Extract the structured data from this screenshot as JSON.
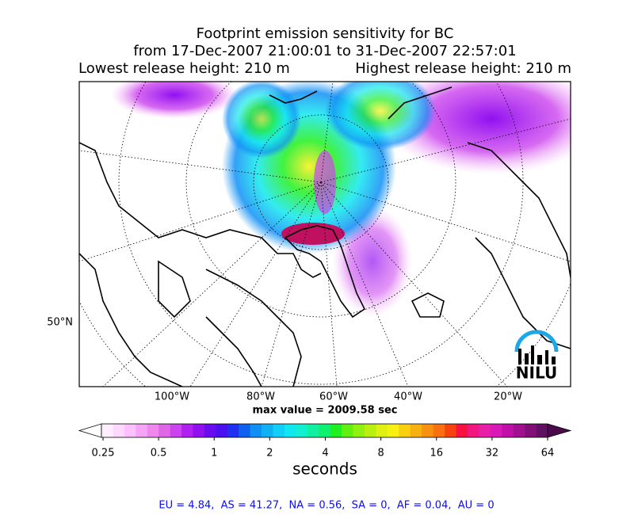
{
  "title": {
    "line1": "Footprint emission sensitivity for BC",
    "line2": "from 17-Dec-2007 21:00:01 to 31-Dec-2007 22:57:01",
    "left": "Lowest release height: 210 m",
    "right": "Highest release height: 210 m"
  },
  "map": {
    "lat_labels": [
      "50°N"
    ],
    "lon_labels": [
      "100°W",
      "80°W",
      "60°W",
      "40°W",
      "20°W"
    ],
    "logo": "NILU"
  },
  "max_value": "max value = 2009.58 sec",
  "colorbar": {
    "ticks": [
      0.25,
      0.5,
      1,
      2,
      4,
      8,
      16,
      32,
      64
    ],
    "label": "seconds",
    "log": true,
    "under_color": "#ffffff",
    "over_color": "#4b0a4b",
    "colors": [
      "#ffeeff",
      "#ffd8ff",
      "#ffc0ff",
      "#f5a5f5",
      "#ee88ee",
      "#e066e8",
      "#cc44ee",
      "#b020f0",
      "#9010f0",
      "#6a0cf0",
      "#4a10f0",
      "#2030f0",
      "#1060f0",
      "#1090f5",
      "#10b0f5",
      "#10d0f5",
      "#10e8ef",
      "#10f0d0",
      "#10f0a0",
      "#10f070",
      "#20f020",
      "#60f010",
      "#90f010",
      "#b8f010",
      "#e0f010",
      "#f8f010",
      "#f8d010",
      "#f8b010",
      "#f89010",
      "#f87010",
      "#f84010",
      "#f81040",
      "#f01880",
      "#e820a8",
      "#d818b8",
      "#c010a8",
      "#a01090",
      "#801078",
      "#601060"
    ]
  },
  "footer": "EU = 4.84,  AS = 41.27,  NA = 0.56,  SA = 0,  AF = 0.04,  AU = 0"
}
